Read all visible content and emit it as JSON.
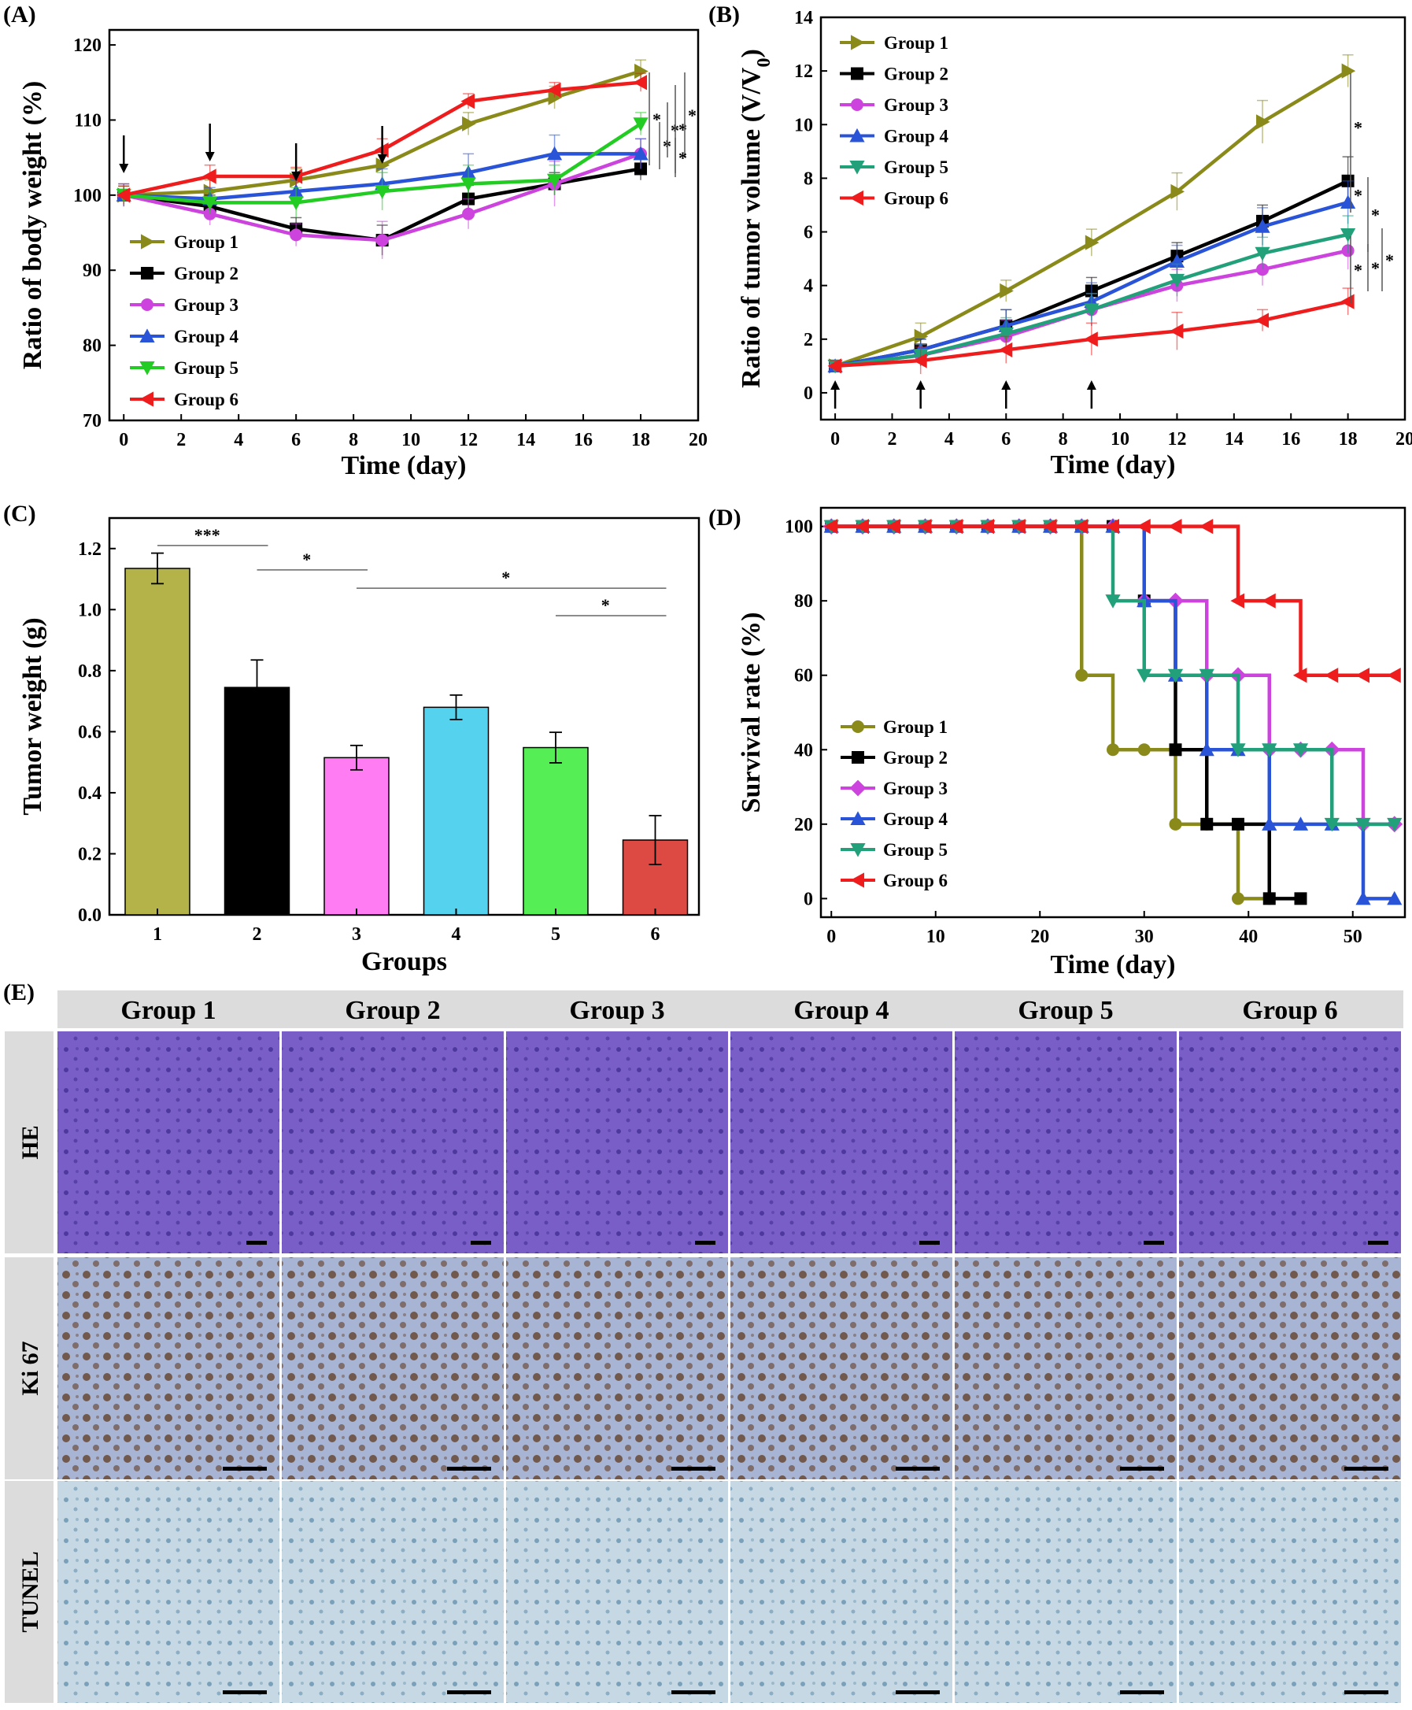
{
  "colors": {
    "group1": "#8a8a1a",
    "group2": "#000000",
    "group3": "#cc44dd",
    "group4": "#2a54d8",
    "group5": "#22a07a",
    "group6": "#ee1c1c",
    "green5": "#22cc22",
    "bar1": "#b3b34a",
    "bar2": "#000000",
    "bar3": "#ff7cf2",
    "bar4": "#55d2ee",
    "bar5": "#55ee55",
    "bar6": "#dd4a44",
    "header_bg": "#dcdcdc",
    "he_tissue": "#7a5ec8",
    "ki67_tissue": "#a8b4d4",
    "tunel_tissue": "#c6d8e4"
  },
  "chart_data": [
    {
      "id": "A",
      "panel_label": "(A)",
      "type": "line",
      "xlabel": "Time (day)",
      "ylabel": "Ratio of body weight (%)",
      "xlim": [
        -0.5,
        20
      ],
      "ylim": [
        70,
        122
      ],
      "xticks": [
        0,
        2,
        4,
        6,
        8,
        10,
        12,
        14,
        16,
        18,
        20
      ],
      "yticks": [
        70,
        80,
        90,
        100,
        110,
        120
      ],
      "xtick_labels": [
        "0",
        "2",
        "4",
        "6",
        "8",
        "10",
        "12",
        "14",
        "16",
        "18",
        "20"
      ],
      "ytick_labels": [
        "70",
        "80",
        "90",
        "100",
        "110",
        "120"
      ],
      "x": [
        0,
        3,
        6,
        9,
        12,
        15,
        18
      ],
      "series": [
        {
          "name": "Group 1",
          "color_key": "group1",
          "marker": "tri-right",
          "values": [
            100,
            100.5,
            102,
            104,
            109.5,
            113,
            116.5
          ],
          "err": [
            1.2,
            1.5,
            1.5,
            1.8,
            1.5,
            1.5,
            1.5
          ]
        },
        {
          "name": "Group 2",
          "color_key": "group2",
          "marker": "square",
          "values": [
            100,
            98.5,
            95.5,
            94,
            99.5,
            101.5,
            103.5
          ],
          "err": [
            1.5,
            1.5,
            1.5,
            2.0,
            1.8,
            1.5,
            1.5
          ]
        },
        {
          "name": "Group 3",
          "color_key": "group3",
          "marker": "circle",
          "values": [
            100,
            97.5,
            94.7,
            94,
            97.5,
            101.5,
            105.5
          ],
          "err": [
            1.5,
            1.5,
            1.5,
            2.5,
            2.0,
            3.0,
            2.0
          ]
        },
        {
          "name": "Group 4",
          "color_key": "group4",
          "marker": "tri-up",
          "values": [
            100,
            99.5,
            100.5,
            101.5,
            103,
            105.5,
            105.5
          ],
          "err": [
            1.2,
            1.5,
            1.5,
            2.0,
            2.5,
            2.5,
            2.0
          ]
        },
        {
          "name": "Group 5",
          "color_key": "green5",
          "marker": "tri-down",
          "values": [
            100,
            99,
            99,
            100.5,
            101.5,
            102,
            109.5
          ],
          "err": [
            1.2,
            1.5,
            2.0,
            2.5,
            2.5,
            2.0,
            1.5
          ]
        },
        {
          "name": "Group 6",
          "color_key": "group6",
          "marker": "tri-left",
          "values": [
            100,
            102.5,
            102.5,
            106,
            112.5,
            114,
            115
          ],
          "err": [
            1.2,
            1.5,
            1.2,
            1.5,
            1.0,
            1.0,
            1.2
          ]
        }
      ],
      "arrows_x": [
        0,
        3,
        6,
        9
      ],
      "significance": [
        "*",
        "*",
        "*",
        "*",
        "*",
        "*"
      ],
      "legend_position": "bottom-left"
    },
    {
      "id": "B",
      "panel_label": "(B)",
      "type": "line",
      "xlabel": "Time (day)",
      "ylabel": "Ratio of tumor volume (V/V",
      "ylabel_sub": "0",
      "ylabel_close": ")",
      "xlim": [
        -0.5,
        20
      ],
      "ylim": [
        -1,
        14
      ],
      "xticks": [
        0,
        2,
        4,
        6,
        8,
        10,
        12,
        14,
        16,
        18,
        20
      ],
      "yticks": [
        0,
        2,
        4,
        6,
        8,
        10,
        12,
        14
      ],
      "xtick_labels": [
        "0",
        "2",
        "4",
        "6",
        "8",
        "10",
        "12",
        "14",
        "16",
        "18",
        "20"
      ],
      "ytick_labels": [
        "0",
        "2",
        "4",
        "6",
        "8",
        "10",
        "12",
        "14"
      ],
      "x": [
        0,
        3,
        6,
        9,
        12,
        15,
        18
      ],
      "series": [
        {
          "name": "Group 1",
          "color_key": "group1",
          "marker": "tri-right",
          "values": [
            1,
            2.1,
            3.8,
            5.6,
            7.5,
            10.1,
            12
          ],
          "err": [
            0.2,
            0.5,
            0.4,
            0.5,
            0.7,
            0.8,
            0.6
          ]
        },
        {
          "name": "Group 2",
          "color_key": "group2",
          "marker": "square",
          "values": [
            1,
            1.6,
            2.5,
            3.8,
            5.1,
            6.4,
            7.9
          ],
          "err": [
            0.2,
            0.4,
            0.6,
            0.5,
            0.5,
            0.6,
            0.9
          ]
        },
        {
          "name": "Group 3",
          "color_key": "group3",
          "marker": "circle",
          "values": [
            1,
            1.4,
            2.1,
            3.1,
            4.0,
            4.6,
            5.3
          ],
          "err": [
            0.2,
            0.4,
            0.6,
            0.6,
            0.6,
            0.6,
            0.7
          ]
        },
        {
          "name": "Group 4",
          "color_key": "group4",
          "marker": "tri-up",
          "values": [
            1,
            1.6,
            2.5,
            3.4,
            4.9,
            6.2,
            7.1
          ],
          "err": [
            0.2,
            0.4,
            0.6,
            0.7,
            0.6,
            0.7,
            0.8
          ]
        },
        {
          "name": "Group 5",
          "color_key": "group5",
          "marker": "tri-down",
          "values": [
            1,
            1.4,
            2.2,
            3.1,
            4.2,
            5.2,
            5.9
          ],
          "err": [
            0.2,
            0.4,
            0.6,
            0.6,
            0.6,
            0.6,
            0.7
          ]
        },
        {
          "name": "Group 6",
          "color_key": "group6",
          "marker": "tri-left",
          "values": [
            1,
            1.2,
            1.6,
            2.0,
            2.3,
            2.7,
            3.4
          ],
          "err": [
            0.2,
            0.5,
            0.5,
            0.6,
            0.7,
            0.4,
            0.5
          ]
        }
      ],
      "arrows_x": [
        0,
        3,
        6,
        9
      ],
      "significance": [
        "*",
        "*",
        "*",
        "*",
        "*",
        "*"
      ],
      "legend_position": "top-left"
    },
    {
      "id": "C",
      "panel_label": "(C)",
      "type": "bar",
      "xlabel": "Groups",
      "ylabel": "Tumor weight (g)",
      "categories": [
        "1",
        "2",
        "3",
        "4",
        "5",
        "6"
      ],
      "values": [
        1.135,
        0.745,
        0.515,
        0.68,
        0.548,
        0.245
      ],
      "err": [
        0.05,
        0.09,
        0.04,
        0.04,
        0.05,
        0.08
      ],
      "bar_color_keys": [
        "bar1",
        "bar2",
        "bar3",
        "bar4",
        "bar5",
        "bar6"
      ],
      "ylim": [
        0,
        1.3
      ],
      "yticks": [
        0,
        0.2,
        0.4,
        0.6,
        0.8,
        1.0,
        1.2
      ],
      "ytick_labels": [
        "0.0",
        "0.2",
        "0.4",
        "0.6",
        "0.8",
        "1.0",
        "1.2"
      ],
      "significance": [
        {
          "from": 1,
          "to": 2,
          "y": 1.21,
          "label": "***"
        },
        {
          "from": 2,
          "to": 3,
          "y": 1.13,
          "label": "*"
        },
        {
          "from": 3,
          "to": 6,
          "y": 1.07,
          "label": "*"
        },
        {
          "from": 5,
          "to": 6,
          "y": 0.98,
          "label": "*"
        }
      ]
    },
    {
      "id": "D",
      "panel_label": "(D)",
      "type": "line",
      "subtype": "step",
      "xlabel": "Time (day)",
      "ylabel": "Survival rate (%)",
      "xlim": [
        -1,
        55
      ],
      "ylim": [
        -5,
        105
      ],
      "xticks": [
        0,
        10,
        20,
        30,
        40,
        50
      ],
      "yticks": [
        0,
        20,
        40,
        60,
        80,
        100
      ],
      "xtick_labels": [
        "0",
        "10",
        "20",
        "30",
        "40",
        "50"
      ],
      "ytick_labels": [
        "0",
        "20",
        "40",
        "60",
        "80",
        "100"
      ],
      "series": [
        {
          "name": "Group 1",
          "color_key": "group1",
          "marker": "circle",
          "points": [
            [
              0,
              100
            ],
            [
              3,
              100
            ],
            [
              6,
              100
            ],
            [
              9,
              100
            ],
            [
              12,
              100
            ],
            [
              15,
              100
            ],
            [
              18,
              100
            ],
            [
              21,
              100
            ],
            [
              24,
              100
            ],
            [
              24,
              60
            ],
            [
              27,
              60
            ],
            [
              27,
              40
            ],
            [
              30,
              40
            ],
            [
              33,
              40
            ],
            [
              33,
              20
            ],
            [
              36,
              20
            ],
            [
              39,
              20
            ],
            [
              39,
              0
            ],
            [
              42,
              0
            ]
          ]
        },
        {
          "name": "Group 2",
          "color_key": "group2",
          "marker": "square",
          "points": [
            [
              0,
              100
            ],
            [
              3,
              100
            ],
            [
              6,
              100
            ],
            [
              9,
              100
            ],
            [
              12,
              100
            ],
            [
              15,
              100
            ],
            [
              18,
              100
            ],
            [
              21,
              100
            ],
            [
              24,
              100
            ],
            [
              27,
              100
            ],
            [
              30,
              100
            ],
            [
              30,
              80
            ],
            [
              33,
              80
            ],
            [
              33,
              60
            ],
            [
              33,
              40
            ],
            [
              36,
              40
            ],
            [
              36,
              20
            ],
            [
              39,
              20
            ],
            [
              42,
              20
            ],
            [
              42,
              0
            ],
            [
              45,
              0
            ]
          ]
        },
        {
          "name": "Group 3",
          "color_key": "group3",
          "marker": "diamond",
          "points": [
            [
              0,
              100
            ],
            [
              3,
              100
            ],
            [
              6,
              100
            ],
            [
              9,
              100
            ],
            [
              12,
              100
            ],
            [
              15,
              100
            ],
            [
              18,
              100
            ],
            [
              21,
              100
            ],
            [
              24,
              100
            ],
            [
              27,
              100
            ],
            [
              30,
              100
            ],
            [
              30,
              80
            ],
            [
              33,
              80
            ],
            [
              36,
              80
            ],
            [
              36,
              60
            ],
            [
              39,
              60
            ],
            [
              42,
              60
            ],
            [
              42,
              40
            ],
            [
              45,
              40
            ],
            [
              48,
              40
            ],
            [
              51,
              40
            ],
            [
              51,
              20
            ],
            [
              54,
              20
            ]
          ]
        },
        {
          "name": "Group 4",
          "color_key": "group4",
          "marker": "tri-up",
          "points": [
            [
              0,
              100
            ],
            [
              3,
              100
            ],
            [
              6,
              100
            ],
            [
              9,
              100
            ],
            [
              12,
              100
            ],
            [
              15,
              100
            ],
            [
              18,
              100
            ],
            [
              21,
              100
            ],
            [
              24,
              100
            ],
            [
              27,
              100
            ],
            [
              30,
              100
            ],
            [
              30,
              80
            ],
            [
              33,
              80
            ],
            [
              33,
              60
            ],
            [
              36,
              60
            ],
            [
              36,
              40
            ],
            [
              39,
              40
            ],
            [
              42,
              40
            ],
            [
              42,
              20
            ],
            [
              45,
              20
            ],
            [
              48,
              20
            ],
            [
              51,
              20
            ],
            [
              51,
              0
            ],
            [
              54,
              0
            ]
          ]
        },
        {
          "name": "Group 5",
          "color_key": "group5",
          "marker": "tri-down",
          "points": [
            [
              0,
              100
            ],
            [
              3,
              100
            ],
            [
              6,
              100
            ],
            [
              9,
              100
            ],
            [
              12,
              100
            ],
            [
              15,
              100
            ],
            [
              18,
              100
            ],
            [
              21,
              100
            ],
            [
              24,
              100
            ],
            [
              27,
              100
            ],
            [
              27,
              80
            ],
            [
              30,
              80
            ],
            [
              30,
              60
            ],
            [
              33,
              60
            ],
            [
              36,
              60
            ],
            [
              39,
              60
            ],
            [
              39,
              40
            ],
            [
              42,
              40
            ],
            [
              45,
              40
            ],
            [
              48,
              40
            ],
            [
              48,
              20
            ],
            [
              51,
              20
            ],
            [
              54,
              20
            ]
          ]
        },
        {
          "name": "Group 6",
          "color_key": "group6",
          "marker": "tri-left",
          "points": [
            [
              0,
              100
            ],
            [
              3,
              100
            ],
            [
              6,
              100
            ],
            [
              9,
              100
            ],
            [
              12,
              100
            ],
            [
              15,
              100
            ],
            [
              18,
              100
            ],
            [
              21,
              100
            ],
            [
              24,
              100
            ],
            [
              27,
              100
            ],
            [
              30,
              100
            ],
            [
              33,
              100
            ],
            [
              36,
              100
            ],
            [
              39,
              100
            ],
            [
              39,
              80
            ],
            [
              42,
              80
            ],
            [
              45,
              80
            ],
            [
              45,
              60
            ],
            [
              48,
              60
            ],
            [
              51,
              60
            ],
            [
              54,
              60
            ]
          ]
        }
      ],
      "legend_position": "bottom-left"
    }
  ],
  "panel_e": {
    "panel_label": "(E)",
    "columns": [
      "Group 1",
      "Group 2",
      "Group 3",
      "Group 4",
      "Group 5",
      "Group 6"
    ],
    "rows": [
      "HE",
      "Ki 67",
      "TUNEL"
    ]
  }
}
